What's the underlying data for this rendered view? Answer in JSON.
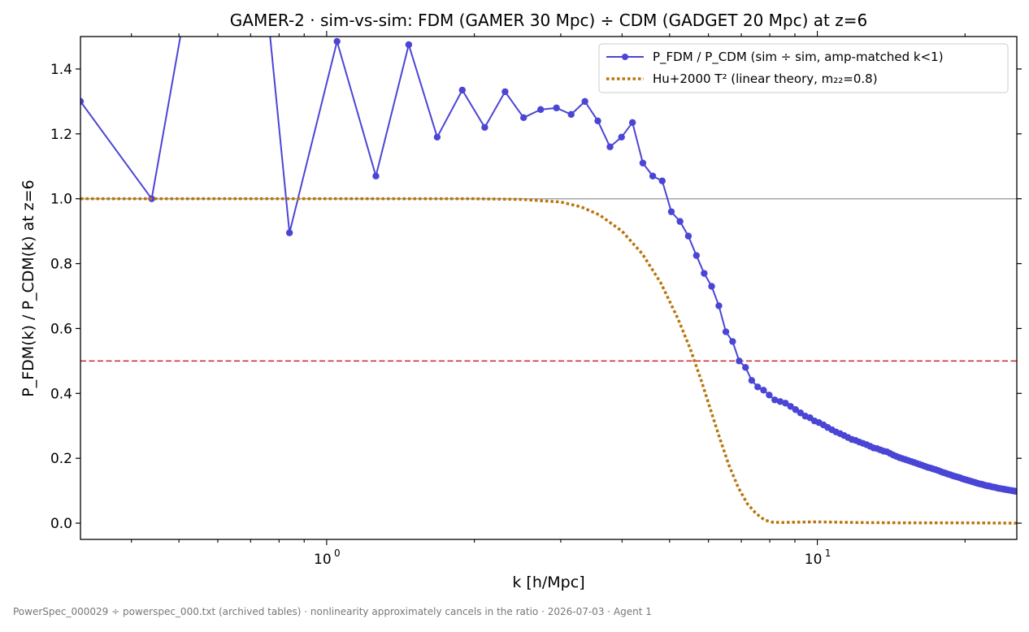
{
  "chart_data": {
    "type": "line",
    "title": "GAMER-2 · sim-vs-sim: FDM (GAMER 30 Mpc) ÷ CDM (GADGET 20 Mpc) at z=6",
    "xlabel": "k [h/Mpc]",
    "ylabel": "P_FDM(k) / P_CDM(k) at z=6",
    "xscale": "log",
    "xlim": [
      0.315,
      25.5
    ],
    "ylim": [
      -0.05,
      1.5
    ],
    "x_ticks": [
      {
        "base": "10",
        "exp": "0",
        "value": 1
      },
      {
        "base": "10",
        "exp": "1",
        "value": 10
      }
    ],
    "y_ticks": [
      "0.0",
      "0.2",
      "0.4",
      "0.6",
      "0.8",
      "1.0",
      "1.2",
      "1.4"
    ],
    "grid": false,
    "legend_position": "top-right",
    "reference_lines": [
      {
        "y": 1.0,
        "color": "#9e9e9e",
        "style": "solid"
      },
      {
        "y": 0.5,
        "color": "#c9252c",
        "style": "dashed"
      }
    ],
    "series": [
      {
        "name": "P_FDM / P_CDM (sim ÷ sim, amp-matched k<1)",
        "color": "#4b45d6",
        "style": "solid-markers",
        "x": [
          0.315,
          0.44,
          0.52,
          0.75,
          0.84,
          1.05,
          1.26,
          1.47,
          1.68,
          1.89,
          2.1,
          2.31,
          2.52,
          2.73,
          2.94,
          3.15,
          3.36,
          3.57,
          3.78,
          3.99,
          4.2,
          4.41,
          4.62,
          4.83,
          5.04,
          5.25,
          5.46,
          5.67,
          5.88,
          6.09,
          6.3,
          6.51,
          6.72,
          6.93,
          7.14,
          7.35,
          7.56,
          7.77,
          7.98,
          8.19,
          8.4,
          8.61,
          8.82,
          9.03,
          9.24,
          9.45,
          9.66,
          9.87,
          10.08,
          10.29,
          10.5,
          10.71,
          10.92,
          11.13,
          11.34,
          11.55,
          11.76,
          11.97,
          12.18,
          12.39,
          12.6,
          12.81,
          13.02,
          13.23,
          13.44,
          13.65,
          13.86,
          14.07,
          14.28,
          14.49,
          14.7,
          14.91,
          15.12,
          15.33,
          15.54,
          15.75,
          15.96,
          16.17,
          16.38,
          16.59,
          16.8,
          17.01,
          17.22,
          17.43,
          17.64,
          17.85,
          18.06,
          18.27,
          18.48,
          18.69,
          18.9,
          19.11,
          19.32,
          19.53,
          19.74,
          19.95,
          20.16,
          20.37,
          20.58,
          20.79,
          21.0,
          21.21,
          21.42,
          21.63,
          21.84,
          22.05,
          22.26,
          22.47,
          22.68,
          22.89,
          23.1,
          23.31,
          23.52,
          23.73,
          23.94,
          24.15,
          24.36,
          24.57,
          24.78,
          24.99,
          25.2,
          25.41
        ],
        "y": [
          1.3,
          1.0,
          1.62,
          1.65,
          0.895,
          1.485,
          1.07,
          1.475,
          1.19,
          1.335,
          1.22,
          1.33,
          1.25,
          1.275,
          1.28,
          1.26,
          1.3,
          1.24,
          1.16,
          1.19,
          1.235,
          1.11,
          1.07,
          1.055,
          0.96,
          0.93,
          0.885,
          0.825,
          0.77,
          0.73,
          0.67,
          0.59,
          0.56,
          0.5,
          0.48,
          0.44,
          0.42,
          0.41,
          0.395,
          0.38,
          0.375,
          0.37,
          0.36,
          0.35,
          0.34,
          0.33,
          0.325,
          0.315,
          0.31,
          0.303,
          0.295,
          0.288,
          0.281,
          0.276,
          0.27,
          0.264,
          0.258,
          0.255,
          0.25,
          0.246,
          0.242,
          0.237,
          0.232,
          0.23,
          0.226,
          0.222,
          0.22,
          0.215,
          0.21,
          0.206,
          0.202,
          0.199,
          0.196,
          0.193,
          0.19,
          0.187,
          0.184,
          0.181,
          0.178,
          0.175,
          0.172,
          0.17,
          0.167,
          0.165,
          0.162,
          0.159,
          0.156,
          0.154,
          0.151,
          0.149,
          0.146,
          0.144,
          0.142,
          0.14,
          0.137,
          0.135,
          0.133,
          0.131,
          0.129,
          0.127,
          0.125,
          0.123,
          0.121,
          0.12,
          0.118,
          0.116,
          0.115,
          0.114,
          0.112,
          0.111,
          0.11,
          0.108,
          0.107,
          0.106,
          0.105,
          0.104,
          0.103,
          0.102,
          0.101,
          0.1,
          0.099,
          0.098
        ]
      },
      {
        "name": "Hu+2000 T² (linear theory, m₂₂=0.8)",
        "color": "#b8760c",
        "style": "dotted",
        "x": [
          0.315,
          0.5,
          0.8,
          1.0,
          1.5,
          2.0,
          2.5,
          3.0,
          3.3,
          3.6,
          4.0,
          4.4,
          4.8,
          5.2,
          5.5,
          5.8,
          6.0,
          6.3,
          6.6,
          6.9,
          7.2,
          7.5,
          7.8,
          8.1,
          8.4,
          9.0,
          10.0,
          12.0,
          15.0,
          20.0,
          25.5
        ],
        "y": [
          1.0,
          1.0,
          1.0,
          1.0,
          1.0,
          1.0,
          0.998,
          0.99,
          0.975,
          0.95,
          0.9,
          0.83,
          0.74,
          0.63,
          0.54,
          0.44,
          0.37,
          0.27,
          0.18,
          0.11,
          0.06,
          0.03,
          0.01,
          0.003,
          0.002,
          0.003,
          0.004,
          0.002,
          0.001,
          0.001,
          0.0
        ]
      }
    ]
  },
  "footer": "PowerSpec_000029 ÷ powerspec_000.txt (archived tables) · nonlinearity approximately cancels in the ratio · 2026-07-03 · Agent 1"
}
